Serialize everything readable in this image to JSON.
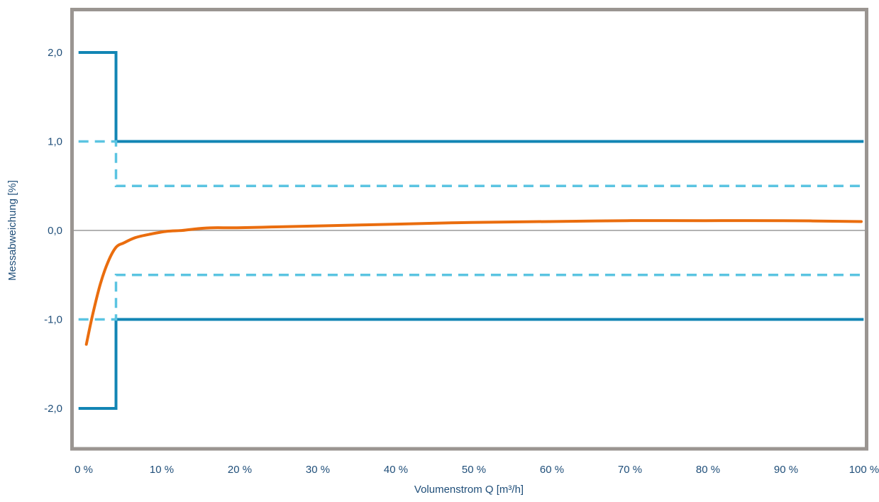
{
  "chart_data": {
    "type": "line",
    "xlabel": "Volumenstrom Q [m³/h]",
    "ylabel": "Messabweichung [%]",
    "xlim": [
      0,
      100
    ],
    "ylim": [
      -2.5,
      2.5
    ],
    "x_ticks": [
      0,
      10,
      20,
      30,
      40,
      50,
      60,
      70,
      80,
      90,
      100
    ],
    "x_tick_labels": [
      "0 %",
      "10 %",
      "20 %",
      "30 %",
      "40 %",
      "50 %",
      "60 %",
      "70 %",
      "80 %",
      "90 %",
      "100 %"
    ],
    "y_ticks": [
      2.0,
      1.0,
      0.0,
      -1.0,
      -2.0
    ],
    "y_tick_labels": [
      "2,0",
      "1,0",
      "0,0",
      "-1,0",
      "-2,0"
    ],
    "grid": false,
    "zero_line": true,
    "series": [
      {
        "style": "solid",
        "color": "#1285b4",
        "x": [
          -0.3,
          4.5,
          4.5,
          100.3
        ],
        "y": [
          2.0,
          2.0,
          1.0,
          1.0
        ]
      },
      {
        "style": "solid",
        "color": "#1285b4",
        "x": [
          -0.3,
          4.5,
          4.5,
          100.3
        ],
        "y": [
          -2.0,
          -2.0,
          -1.0,
          -1.0
        ]
      },
      {
        "style": "dashed",
        "color": "#5bc4e1",
        "x": [
          -0.3,
          4.5,
          4.5,
          100.3
        ],
        "y": [
          1.0,
          1.0,
          0.5,
          0.5
        ]
      },
      {
        "style": "dashed",
        "color": "#5bc4e1",
        "x": [
          -0.3,
          4.5,
          4.5,
          100.3
        ],
        "y": [
          -1.0,
          -1.0,
          -0.5,
          -0.5
        ]
      },
      {
        "style": "solid",
        "color": "#ea6d0e",
        "x": [
          0.7,
          1.5,
          2.5,
          3.5,
          4.5,
          5.5,
          7,
          9,
          11,
          13,
          15,
          17,
          20,
          25,
          30,
          40,
          50,
          60,
          70,
          80,
          90,
          100
        ],
        "y": [
          -1.28,
          -0.95,
          -0.6,
          -0.35,
          -0.19,
          -0.14,
          -0.08,
          -0.04,
          -0.01,
          0.0,
          0.02,
          0.03,
          0.03,
          0.04,
          0.05,
          0.07,
          0.09,
          0.1,
          0.11,
          0.11,
          0.11,
          0.1
        ]
      }
    ]
  }
}
